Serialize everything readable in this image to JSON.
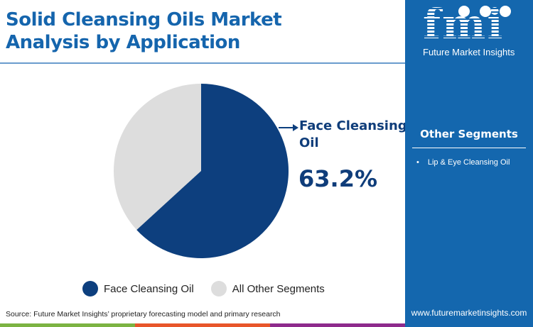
{
  "header": {
    "title_line1": "Solid Cleansing Oils Market",
    "title_line2": "Analysis by Application"
  },
  "brand": {
    "logo_text": "fmi",
    "company": "Future Market Insights",
    "url": "www.futuremarketinsights.com"
  },
  "sidebar": {
    "title": "Other Segments",
    "items": [
      {
        "label": "Lip & Eye Cleansing Oil"
      }
    ]
  },
  "callout": {
    "label_line1": "Face Cleansing",
    "label_line2": "Oil",
    "value": "63.2%"
  },
  "legend": [
    {
      "label": "Face Cleansing Oil",
      "color": "#0d3f7e"
    },
    {
      "label": "All Other Segments",
      "color": "#dddddd"
    }
  ],
  "footer": {
    "source": "Source: Future Market Insights’ proprietary forecasting model and primary research",
    "bar_colors": [
      "#7cb342",
      "#e8562a",
      "#8e2a8c"
    ]
  },
  "colors": {
    "title": "#1565ad",
    "sidebar_bg": "#1467ae",
    "primary": "#0d3f7e",
    "other": "#dddddd"
  },
  "chart_data": {
    "type": "pie",
    "title": "Solid Cleansing Oils Market Analysis by Application",
    "categories": [
      "Face Cleansing Oil",
      "All Other Segments"
    ],
    "values": [
      63.2,
      36.8
    ],
    "colors": [
      "#0d3f7e",
      "#dddddd"
    ],
    "annotations": [
      {
        "label": "Face Cleansing Oil",
        "value": "63.2%"
      }
    ],
    "legend_position": "bottom"
  }
}
